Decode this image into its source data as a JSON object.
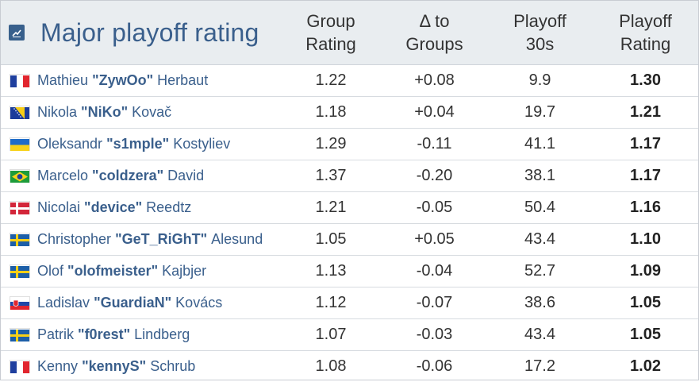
{
  "header": {
    "title": "Major playoff rating",
    "logo_icon": "chart-logo-icon",
    "columns": [
      "Group\nRating",
      "Δ to\nGroups",
      "Playoff\n30s",
      "Playoff\nRating"
    ]
  },
  "rows": [
    {
      "flag": "france",
      "first": "Mathieu",
      "nick": "\"ZywOo\"",
      "last": "Herbaut",
      "group_rating": "1.22",
      "delta": "+0.08",
      "playoff_30s": "9.9",
      "playoff_rating": "1.30"
    },
    {
      "flag": "bosnia",
      "first": "Nikola",
      "nick": "\"NiKo\"",
      "last": "Kovač",
      "group_rating": "1.18",
      "delta": "+0.04",
      "playoff_30s": "19.7",
      "playoff_rating": "1.21"
    },
    {
      "flag": "ukraine",
      "first": "Oleksandr",
      "nick": "\"s1mple\"",
      "last": "Kostyliev",
      "group_rating": "1.29",
      "delta": "-0.11",
      "playoff_30s": "41.1",
      "playoff_rating": "1.17"
    },
    {
      "flag": "brazil",
      "first": "Marcelo",
      "nick": "\"coldzera\"",
      "last": "David",
      "group_rating": "1.37",
      "delta": "-0.20",
      "playoff_30s": "38.1",
      "playoff_rating": "1.17"
    },
    {
      "flag": "denmark",
      "first": "Nicolai",
      "nick": "\"device\"",
      "last": "Reedtz",
      "group_rating": "1.21",
      "delta": "-0.05",
      "playoff_30s": "50.4",
      "playoff_rating": "1.16"
    },
    {
      "flag": "sweden",
      "first": "Christopher",
      "nick": "\"GeT_RiGhT\"",
      "last": "Alesund",
      "group_rating": "1.05",
      "delta": "+0.05",
      "playoff_30s": "43.4",
      "playoff_rating": "1.10"
    },
    {
      "flag": "sweden",
      "first": "Olof",
      "nick": "\"olofmeister\"",
      "last": "Kajbjer",
      "group_rating": "1.13",
      "delta": "-0.04",
      "playoff_30s": "52.7",
      "playoff_rating": "1.09"
    },
    {
      "flag": "slovakia",
      "first": "Ladislav",
      "nick": "\"GuardiaN\"",
      "last": "Kovács",
      "group_rating": "1.12",
      "delta": "-0.07",
      "playoff_30s": "38.6",
      "playoff_rating": "1.05"
    },
    {
      "flag": "sweden",
      "first": "Patrik",
      "nick": "\"f0rest\"",
      "last": "Lindberg",
      "group_rating": "1.07",
      "delta": "-0.03",
      "playoff_30s": "43.4",
      "playoff_rating": "1.05"
    },
    {
      "flag": "france",
      "first": "Kenny",
      "nick": "\"kennyS\"",
      "last": "Schrub",
      "group_rating": "1.08",
      "delta": "-0.06",
      "playoff_30s": "17.2",
      "playoff_rating": "1.02"
    }
  ],
  "colors": {
    "title": "#3a5f8c",
    "header_bg": "#e9edf0",
    "text": "#333333"
  }
}
